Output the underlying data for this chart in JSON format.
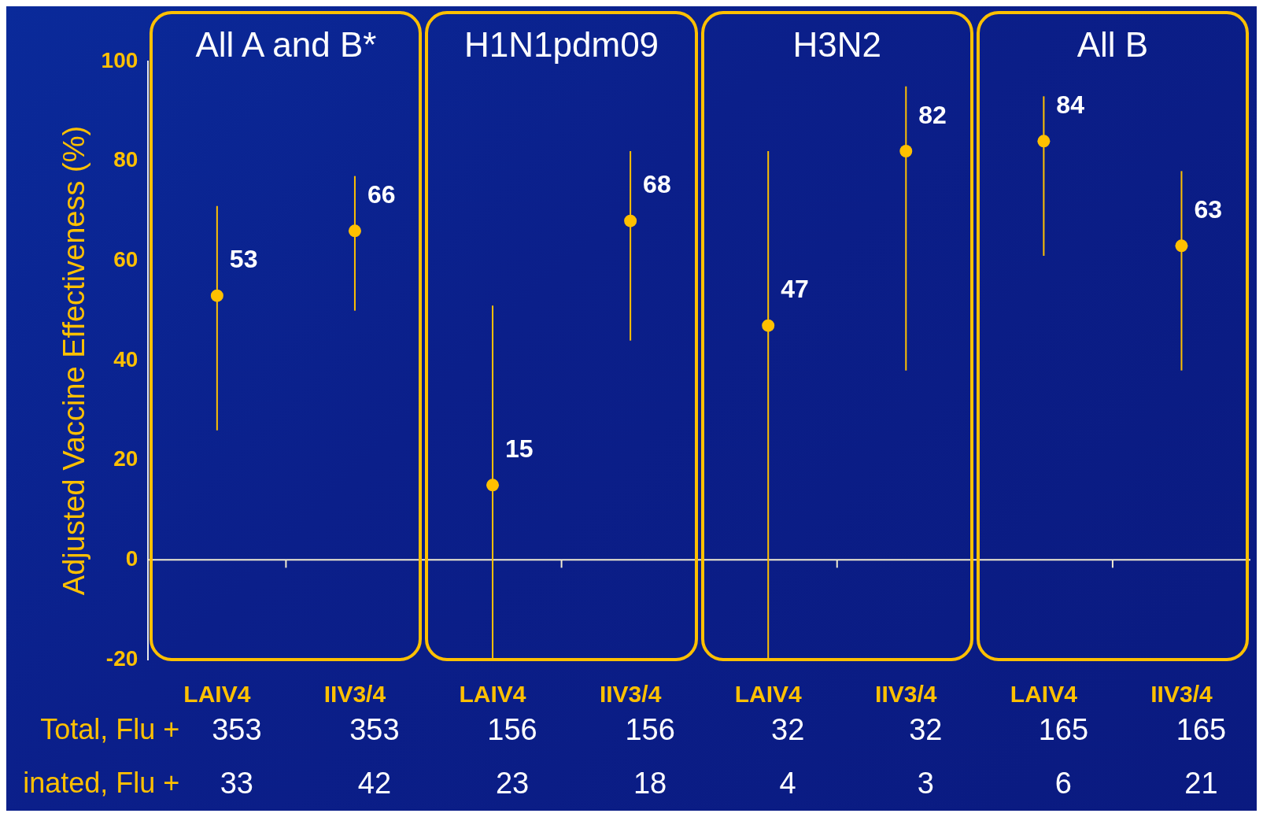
{
  "chart_data": {
    "type": "scatter",
    "ylabel": "Adjusted Vaccine Effectiveness (%)",
    "categories": [
      "LAIV4",
      "IIV3/4",
      "LAIV4",
      "IIV3/4",
      "LAIV4",
      "IIV3/4",
      "LAIV4",
      "IIV3/4"
    ],
    "values": [
      53,
      66,
      15,
      68,
      47,
      82,
      84,
      63
    ],
    "errors": [
      [
        26,
        71
      ],
      [
        50,
        77
      ],
      [
        -20,
        51
      ],
      [
        44,
        82
      ],
      [
        -20,
        82
      ],
      [
        38,
        95
      ],
      [
        61,
        93
      ],
      [
        38,
        78
      ]
    ],
    "color": "#ffc000",
    "marker": "circle",
    "data_labels": true,
    "legend": false,
    "grid": false,
    "ylim": [
      -20,
      100
    ],
    "yticks": [
      -20,
      0,
      20,
      40,
      60,
      80,
      100
    ],
    "ref_lines": [
      {
        "axis": "y",
        "value": 0,
        "color": "#f2ecd0"
      }
    ],
    "annotations": [
      "All A and B*",
      "H1N1pdm09",
      "H3N2",
      "All B",
      "Total, Flu +",
      "353",
      "353",
      "156",
      "156",
      "32",
      "32",
      "165",
      "165",
      "inated, Flu +",
      "33",
      "42",
      "23",
      "18",
      "4",
      "3",
      "6",
      "21"
    ]
  }
}
